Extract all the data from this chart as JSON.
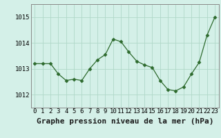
{
  "hours": [
    0,
    1,
    2,
    3,
    4,
    5,
    6,
    7,
    8,
    9,
    10,
    11,
    12,
    13,
    14,
    15,
    16,
    17,
    18,
    19,
    20,
    21,
    22,
    23
  ],
  "pressure": [
    1013.2,
    1013.2,
    1013.2,
    1012.8,
    1012.55,
    1012.6,
    1012.55,
    1013.0,
    1013.35,
    1013.55,
    1014.15,
    1014.05,
    1013.65,
    1013.3,
    1013.15,
    1013.05,
    1012.55,
    1012.2,
    1012.15,
    1012.3,
    1012.8,
    1013.25,
    1014.3,
    1015.0
  ],
  "line_color": "#2d6a2d",
  "marker": "D",
  "marker_size": 2.5,
  "bg_color": "#d4f0e8",
  "grid_color": "#b0d8c8",
  "title": "Graphe pression niveau de la mer (hPa)",
  "ylim": [
    1011.5,
    1015.5
  ],
  "yticks": [
    1012,
    1013,
    1014,
    1015
  ],
  "xlim": [
    -0.5,
    23.5
  ],
  "title_fontsize": 8,
  "tick_fontsize": 6.5
}
